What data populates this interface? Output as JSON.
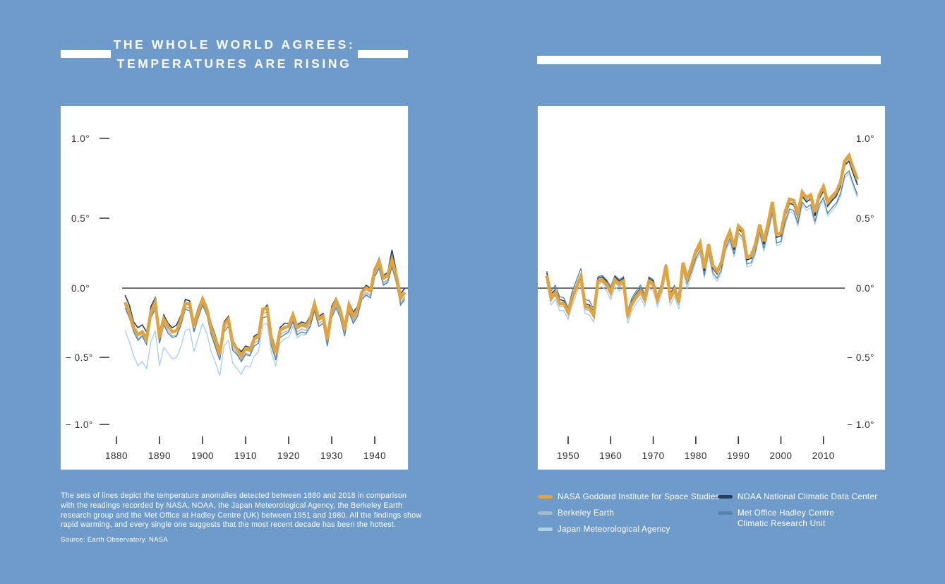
{
  "page": {
    "background_color": "#6E9BC9",
    "panel_color": "#FFFFFF",
    "zero_line_color": "#3D3D3D",
    "axis_text_color": "#2D2D2D"
  },
  "header": {
    "title_line1": "THE WHOLE WORLD AGREES:",
    "title_line2": "TEMPERATURES ARE RISING"
  },
  "caption": {
    "text": "The sets of lines depict the temperature anomalies detected between 1880 and 2018 in comparison with the readings recorded by NASA, NOAA, the Japan Meteorological Agency, the Berkeley Earth research group and the Met Office at Hadley Centre (UK) between 1951 and 1980. All the findings show rapid warming, and every single one suggests that the most recent decade has been the hottest.",
    "source": "Source: Earth Observatory. NASA"
  },
  "legend": {
    "items": [
      {
        "label": "NASA Goddard Institute for Space Studies",
        "color": "#E2A33C"
      },
      {
        "label": "Berkeley Earth",
        "color": "#A2BACC"
      },
      {
        "label": "Japan Meteorological Agency",
        "color": "#ACD0E8"
      },
      {
        "label": "NOAA National Climatic Data Center",
        "color": "#20405E"
      },
      {
        "label": "Met Office Hadley Centre",
        "label_line2": "Climatic Research Unit",
        "color": "#5585AC"
      }
    ]
  },
  "chart_data": [
    {
      "type": "line",
      "title": "Temperature anomalies 1880–1947 (vs 1951–1980 baseline)",
      "x_range": [
        1882,
        1947
      ],
      "ylim": [
        -1.15,
        1.15
      ],
      "x_ticks": [
        1880,
        1890,
        1900,
        1910,
        1920,
        1930,
        1940
      ],
      "y_ticks": [
        1.0,
        0.5,
        0.0,
        -0.5,
        -1.0
      ],
      "y_tick_labels": [
        "1.0°",
        "0.5°",
        "0.0°",
        "− 0.5°",
        "− 1.0°"
      ],
      "grid": false,
      "legend_position": "below-right-chart",
      "series": [
        {
          "name": "Japan Meteorological Agency",
          "color": "#ACD0E8",
          "width": 1.4,
          "values": [
            -0.3,
            -0.38,
            -0.48,
            -0.55,
            -0.52,
            -0.57,
            -0.38,
            -0.3,
            -0.55,
            -0.42,
            -0.46,
            -0.5,
            -0.49,
            -0.41,
            -0.3,
            -0.29,
            -0.45,
            -0.35,
            -0.25,
            -0.32,
            -0.45,
            -0.53,
            -0.62,
            -0.41,
            -0.37,
            -0.53,
            -0.57,
            -0.61,
            -0.55,
            -0.56,
            -0.48,
            -0.45,
            -0.26,
            -0.25,
            -0.46,
            -0.55,
            -0.39,
            -0.36,
            -0.35,
            -0.27,
            -0.35,
            -0.33,
            -0.33,
            -0.28,
            -0.17,
            -0.27,
            -0.25,
            -0.41,
            -0.21,
            -0.14,
            -0.2,
            -0.33,
            -0.16,
            -0.24,
            -0.19,
            -0.07,
            -0.04,
            -0.06,
            0.09,
            0.15,
            0.03,
            0.05,
            0.16,
            0.05,
            -0.11,
            -0.07
          ]
        },
        {
          "name": "Berkeley Earth",
          "color": "#A2BACC",
          "width": 1.5,
          "values": [
            -0.12,
            -0.2,
            -0.3,
            -0.36,
            -0.33,
            -0.38,
            -0.2,
            -0.13,
            -0.38,
            -0.25,
            -0.3,
            -0.34,
            -0.33,
            -0.25,
            -0.14,
            -0.14,
            -0.3,
            -0.2,
            -0.11,
            -0.18,
            -0.31,
            -0.4,
            -0.5,
            -0.29,
            -0.25,
            -0.42,
            -0.46,
            -0.51,
            -0.46,
            -0.47,
            -0.39,
            -0.37,
            -0.18,
            -0.17,
            -0.39,
            -0.49,
            -0.33,
            -0.31,
            -0.3,
            -0.22,
            -0.31,
            -0.29,
            -0.3,
            -0.25,
            -0.14,
            -0.25,
            -0.23,
            -0.39,
            -0.19,
            -0.12,
            -0.19,
            -0.32,
            -0.15,
            -0.23,
            -0.18,
            -0.06,
            -0.03,
            -0.05,
            0.1,
            0.16,
            0.04,
            0.06,
            0.17,
            0.06,
            -0.1,
            -0.06
          ]
        },
        {
          "name": "Met Office Hadley Centre Climatic Research Unit",
          "color": "#5585AC",
          "width": 1.4,
          "values": [
            -0.14,
            -0.21,
            -0.31,
            -0.37,
            -0.34,
            -0.4,
            -0.21,
            -0.15,
            -0.39,
            -0.26,
            -0.32,
            -0.35,
            -0.34,
            -0.26,
            -0.15,
            -0.16,
            -0.31,
            -0.21,
            -0.12,
            -0.19,
            -0.33,
            -0.42,
            -0.51,
            -0.31,
            -0.27,
            -0.44,
            -0.47,
            -0.52,
            -0.47,
            -0.48,
            -0.41,
            -0.39,
            -0.21,
            -0.2,
            -0.41,
            -0.51,
            -0.35,
            -0.33,
            -0.31,
            -0.24,
            -0.33,
            -0.31,
            -0.32,
            -0.27,
            -0.16,
            -0.27,
            -0.25,
            -0.41,
            -0.21,
            -0.14,
            -0.21,
            -0.34,
            -0.17,
            -0.25,
            -0.2,
            -0.08,
            -0.05,
            -0.07,
            0.08,
            0.14,
            0.02,
            0.04,
            0.15,
            0.04,
            -0.12,
            -0.08
          ]
        },
        {
          "name": "NOAA National Climatic Data Center",
          "color": "#20405E",
          "width": 1.6,
          "values": [
            -0.05,
            -0.12,
            -0.24,
            -0.28,
            -0.26,
            -0.31,
            -0.13,
            -0.07,
            -0.31,
            -0.19,
            -0.25,
            -0.28,
            -0.26,
            -0.19,
            -0.08,
            -0.09,
            -0.24,
            -0.14,
            -0.06,
            -0.13,
            -0.25,
            -0.34,
            -0.44,
            -0.24,
            -0.2,
            -0.37,
            -0.42,
            -0.45,
            -0.41,
            -0.42,
            -0.34,
            -0.32,
            -0.16,
            -0.12,
            -0.33,
            -0.43,
            -0.28,
            -0.25,
            -0.25,
            -0.17,
            -0.26,
            -0.24,
            -0.25,
            -0.2,
            -0.09,
            -0.2,
            -0.18,
            -0.33,
            -0.13,
            -0.07,
            -0.14,
            -0.26,
            -0.1,
            -0.17,
            -0.13,
            -0.02,
            0.02,
            0.0,
            0.14,
            0.21,
            0.09,
            0.11,
            0.27,
            0.12,
            -0.04,
            0.0
          ]
        },
        {
          "name": "NASA Goddard Institute for Space Studies",
          "color": "#E2A33C",
          "width": 4.5,
          "values": [
            -0.1,
            -0.17,
            -0.28,
            -0.33,
            -0.31,
            -0.36,
            -0.17,
            -0.1,
            -0.35,
            -0.22,
            -0.27,
            -0.31,
            -0.3,
            -0.22,
            -0.11,
            -0.11,
            -0.27,
            -0.17,
            -0.08,
            -0.15,
            -0.28,
            -0.37,
            -0.47,
            -0.26,
            -0.22,
            -0.39,
            -0.43,
            -0.48,
            -0.43,
            -0.44,
            -0.36,
            -0.34,
            -0.15,
            -0.14,
            -0.36,
            -0.46,
            -0.3,
            -0.28,
            -0.27,
            -0.19,
            -0.28,
            -0.26,
            -0.27,
            -0.22,
            -0.11,
            -0.22,
            -0.2,
            -0.36,
            -0.16,
            -0.09,
            -0.16,
            -0.29,
            -0.12,
            -0.2,
            -0.15,
            -0.03,
            0.0,
            -0.02,
            0.13,
            0.19,
            0.07,
            0.09,
            0.2,
            0.09,
            -0.07,
            -0.03
          ]
        }
      ]
    },
    {
      "type": "line",
      "title": "Temperature anomalies 1945–2018 (vs 1951–1980 baseline)",
      "x_range": [
        1945,
        2018
      ],
      "ylim": [
        -1.15,
        1.15
      ],
      "x_ticks": [
        1950,
        1960,
        1970,
        1980,
        1990,
        2000,
        2010
      ],
      "y_ticks": [
        1.0,
        0.5,
        0.0,
        -0.5,
        -1.0
      ],
      "y_tick_labels": [
        "1.0°",
        "0.5°",
        "0.0°",
        "− 0.5°",
        "− 1.0°"
      ],
      "grid": false,
      "legend_position": "below-right-chart",
      "series": [
        {
          "name": "Japan Meteorological Agency",
          "color": "#ACD0E8",
          "width": 1.4,
          "values": [
            0.04,
            -0.12,
            -0.08,
            -0.16,
            -0.16,
            -0.22,
            -0.12,
            -0.04,
            0.03,
            -0.18,
            -0.19,
            -0.24,
            0.0,
            0.01,
            -0.02,
            -0.08,
            0.01,
            -0.02,
            0.0,
            -0.25,
            -0.16,
            -0.11,
            -0.07,
            -0.13,
            0.0,
            -0.02,
            -0.13,
            -0.04,
            0.11,
            -0.12,
            -0.06,
            -0.15,
            0.11,
            0.0,
            0.09,
            0.19,
            0.25,
            0.07,
            0.24,
            0.09,
            0.05,
            0.11,
            0.26,
            0.33,
            0.22,
            0.37,
            0.34,
            0.15,
            0.16,
            0.24,
            0.38,
            0.26,
            0.39,
            0.52,
            0.3,
            0.31,
            0.45,
            0.54,
            0.53,
            0.44,
            0.59,
            0.55,
            0.57,
            0.45,
            0.57,
            0.62,
            0.51,
            0.55,
            0.58,
            0.65,
            0.78,
            0.81,
            0.72,
            0.64
          ]
        },
        {
          "name": "Berkeley Earth",
          "color": "#A2BACC",
          "width": 1.5,
          "values": [
            0.07,
            -0.09,
            -0.05,
            -0.13,
            -0.13,
            -0.19,
            -0.09,
            -0.01,
            0.06,
            -0.15,
            -0.16,
            -0.21,
            0.03,
            0.04,
            0.01,
            -0.05,
            0.04,
            0.01,
            0.03,
            -0.22,
            -0.13,
            -0.08,
            -0.04,
            -0.1,
            0.03,
            0.01,
            -0.1,
            -0.01,
            0.14,
            -0.09,
            -0.03,
            -0.12,
            0.16,
            0.05,
            0.14,
            0.24,
            0.3,
            0.12,
            0.29,
            0.14,
            0.1,
            0.16,
            0.31,
            0.38,
            0.27,
            0.42,
            0.39,
            0.2,
            0.21,
            0.29,
            0.43,
            0.31,
            0.44,
            0.59,
            0.36,
            0.37,
            0.52,
            0.61,
            0.6,
            0.51,
            0.66,
            0.62,
            0.64,
            0.52,
            0.64,
            0.7,
            0.59,
            0.63,
            0.66,
            0.73,
            0.88,
            0.92,
            0.83,
            0.75
          ]
        },
        {
          "name": "Met Office Hadley Centre Climatic Research Unit",
          "color": "#5585AC",
          "width": 1.4,
          "values": [
            0.12,
            -0.02,
            0.02,
            -0.06,
            -0.07,
            -0.14,
            -0.02,
            0.06,
            0.14,
            -0.08,
            -0.09,
            -0.15,
            0.08,
            0.09,
            0.06,
            0.01,
            0.09,
            0.06,
            0.08,
            -0.16,
            -0.07,
            -0.02,
            0.02,
            -0.04,
            0.08,
            0.06,
            -0.05,
            0.04,
            0.17,
            -0.04,
            0.02,
            -0.07,
            0.14,
            0.03,
            0.12,
            0.21,
            0.27,
            0.09,
            0.26,
            0.11,
            0.07,
            0.13,
            0.28,
            0.35,
            0.24,
            0.39,
            0.36,
            0.17,
            0.18,
            0.26,
            0.4,
            0.28,
            0.41,
            0.54,
            0.32,
            0.33,
            0.47,
            0.56,
            0.55,
            0.46,
            0.61,
            0.57,
            0.59,
            0.47,
            0.59,
            0.64,
            0.53,
            0.57,
            0.6,
            0.67,
            0.8,
            0.83,
            0.74,
            0.66
          ]
        },
        {
          "name": "NOAA National Climatic Data Center",
          "color": "#20405E",
          "width": 1.6,
          "values": [
            0.11,
            -0.04,
            -0.01,
            -0.08,
            -0.09,
            -0.15,
            -0.05,
            0.03,
            0.1,
            -0.11,
            -0.12,
            -0.17,
            0.07,
            0.08,
            0.05,
            -0.01,
            0.08,
            0.05,
            0.07,
            -0.18,
            -0.09,
            -0.04,
            0.0,
            -0.06,
            0.07,
            0.05,
            -0.06,
            0.03,
            0.14,
            -0.05,
            0.01,
            -0.08,
            0.16,
            0.05,
            0.14,
            0.24,
            0.3,
            0.12,
            0.29,
            0.14,
            0.1,
            0.16,
            0.31,
            0.38,
            0.27,
            0.42,
            0.39,
            0.2,
            0.21,
            0.29,
            0.43,
            0.31,
            0.44,
            0.58,
            0.36,
            0.37,
            0.51,
            0.6,
            0.59,
            0.5,
            0.65,
            0.61,
            0.63,
            0.51,
            0.63,
            0.69,
            0.58,
            0.62,
            0.65,
            0.72,
            0.87,
            0.9,
            0.81,
            0.73
          ]
        },
        {
          "name": "NASA Goddard Institute for Space Studies",
          "color": "#E2A33C",
          "width": 4.5,
          "values": [
            0.09,
            -0.07,
            -0.03,
            -0.11,
            -0.11,
            -0.17,
            -0.07,
            0.01,
            0.08,
            -0.13,
            -0.14,
            -0.19,
            0.05,
            0.06,
            0.03,
            -0.03,
            0.06,
            0.03,
            0.05,
            -0.2,
            -0.11,
            -0.06,
            -0.02,
            -0.08,
            0.05,
            0.03,
            -0.08,
            0.01,
            0.16,
            -0.07,
            -0.01,
            -0.1,
            0.18,
            0.07,
            0.16,
            0.26,
            0.32,
            0.14,
            0.31,
            0.16,
            0.12,
            0.18,
            0.33,
            0.4,
            0.29,
            0.44,
            0.41,
            0.22,
            0.23,
            0.31,
            0.45,
            0.33,
            0.46,
            0.61,
            0.38,
            0.39,
            0.54,
            0.63,
            0.62,
            0.53,
            0.68,
            0.64,
            0.66,
            0.54,
            0.66,
            0.72,
            0.61,
            0.65,
            0.68,
            0.75,
            0.9,
            0.94,
            0.85,
            0.77
          ]
        }
      ]
    }
  ]
}
